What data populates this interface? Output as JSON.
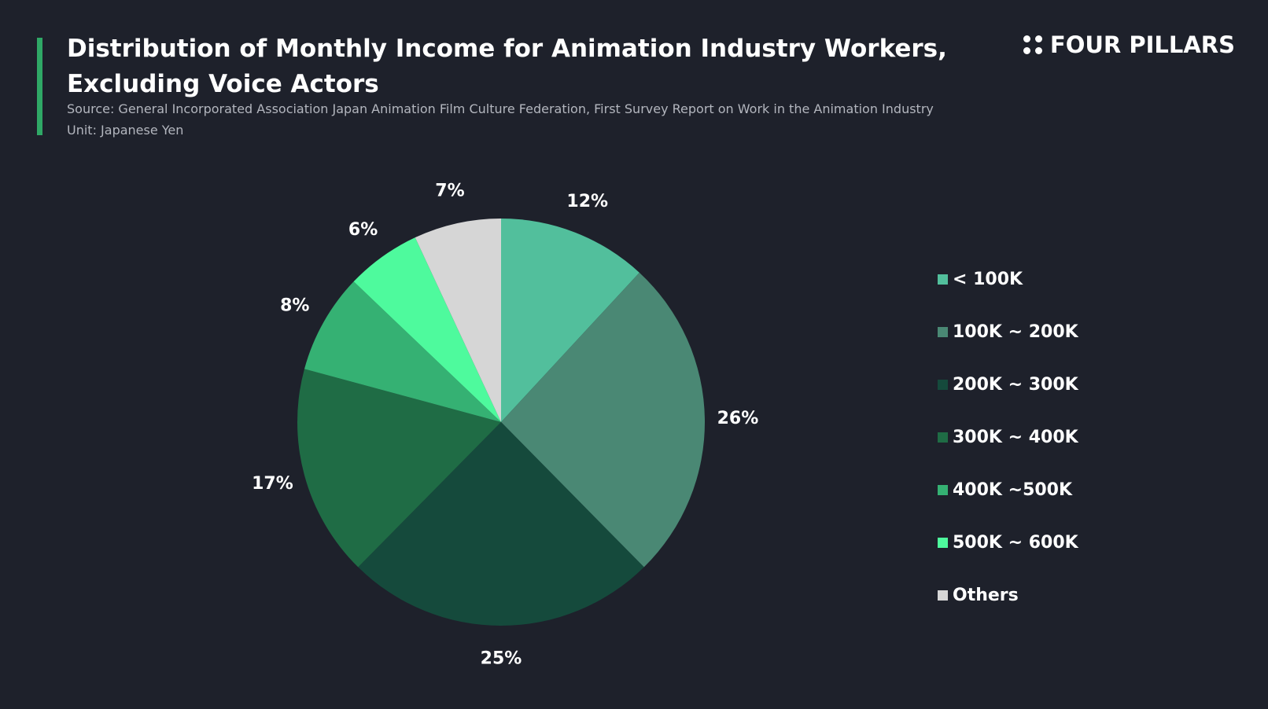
{
  "header": {
    "title": "Distribution of Monthly Income for Animation Industry Workers, Excluding Voice Actors",
    "source": "Source: General Incorporated Association Japan Animation Film Culture Federation, First Survey Report on Work in the Animation Industry",
    "unit": "Unit: Japanese Yen"
  },
  "brand": {
    "name": "FOUR PILLARS",
    "icon": "four-dots-logo-icon"
  },
  "colors": {
    "background": "#1e212b",
    "accent": "#2fa866"
  },
  "chart_data": {
    "type": "pie",
    "title": "Distribution of Monthly Income for Animation Industry Workers, Excluding Voice Actors",
    "legend_position": "right",
    "slices": [
      {
        "label": "< 100K",
        "value": 12,
        "display": "12%",
        "color": "#52bf9c"
      },
      {
        "label": "100K ~ 200K",
        "value": 26,
        "display": "26%",
        "color": "#4a8874"
      },
      {
        "label": "200K ~ 300K",
        "value": 25,
        "display": "25%",
        "color": "#154a3c"
      },
      {
        "label": "300K ~ 400K",
        "value": 17,
        "display": "17%",
        "color": "#1f6c45"
      },
      {
        "label": "400K ~500K",
        "value": 8,
        "display": "8%",
        "color": "#35b173"
      },
      {
        "label": "500K ~ 600K",
        "value": 6,
        "display": "6%",
        "color": "#4efa9d"
      },
      {
        "label": "Others",
        "value": 7,
        "display": "7%",
        "color": "#d6d6d6"
      }
    ]
  }
}
